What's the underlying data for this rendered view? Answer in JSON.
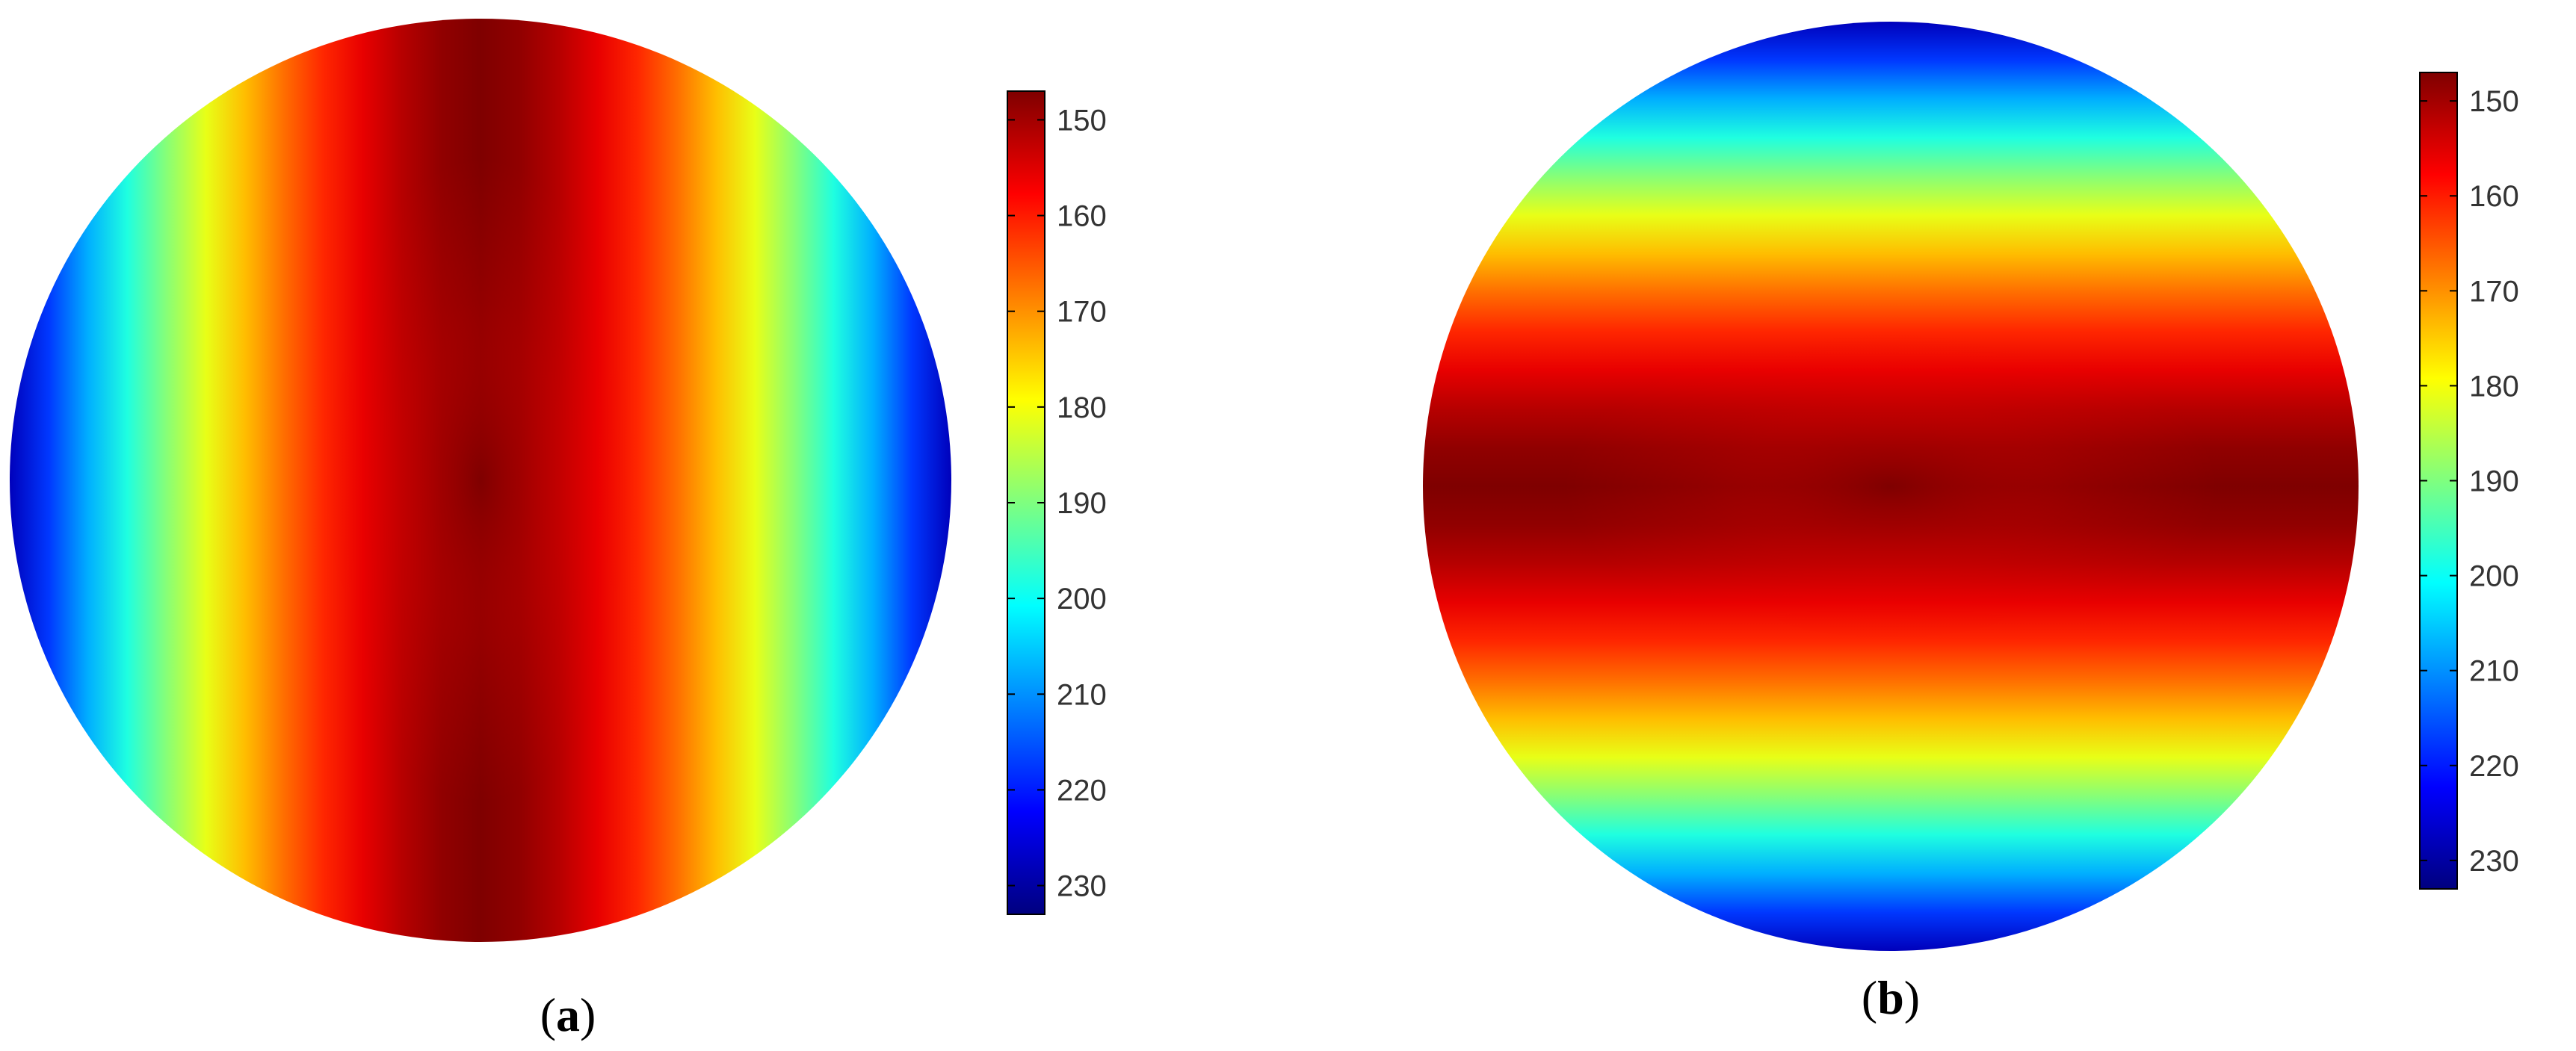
{
  "chart_data": [
    {
      "type": "heatmap",
      "panel_label": "a",
      "orientation": "vertical-bands",
      "colormap": "jet-reversed",
      "colorbar": {
        "min": 147,
        "max": 233,
        "ticks": [
          150,
          160,
          170,
          180,
          190,
          200,
          210,
          220,
          230
        ],
        "tick_labels": [
          "150",
          "160",
          "170",
          "180",
          "190",
          "200",
          "210",
          "220",
          "230"
        ],
        "direction": "low-at-top"
      },
      "value_range": [
        147,
        228
      ],
      "center_value": 147,
      "edge_value": 228
    },
    {
      "type": "heatmap",
      "panel_label": "b",
      "orientation": "horizontal-bands",
      "colormap": "jet-reversed",
      "colorbar": {
        "min": 147,
        "max": 233,
        "ticks": [
          150,
          160,
          170,
          180,
          190,
          200,
          210,
          220,
          230
        ],
        "tick_labels": [
          "150",
          "160",
          "170",
          "180",
          "190",
          "200",
          "210",
          "220",
          "230"
        ],
        "direction": "low-at-top"
      },
      "value_range": [
        147,
        228
      ],
      "center_value": 147,
      "edge_value": 228
    }
  ],
  "colors": {
    "jet_stops": [
      "#00007f",
      "#0000ff",
      "#007fff",
      "#00ffff",
      "#7fff7f",
      "#ffff00",
      "#ff7f00",
      "#ff0000",
      "#7f0000"
    ],
    "frame": "#000000",
    "tick_text": "#333333"
  }
}
